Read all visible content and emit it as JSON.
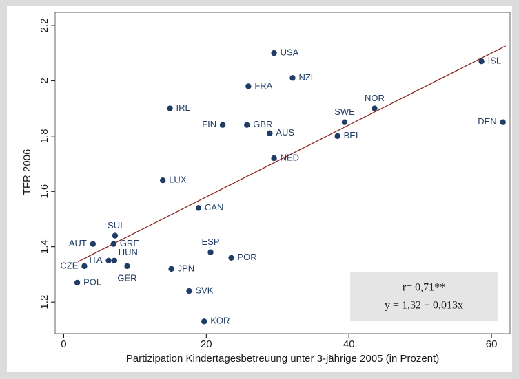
{
  "chart_data": {
    "type": "scatter",
    "x_label": "Partizipation Kindertagesbetreuung unter 3-jährige 2005 (in Prozent)",
    "y_label": "TFR 2006",
    "labels": [
      "USA",
      "NZL",
      "FRA",
      "ISL",
      "NOR",
      "IRL",
      "SWE",
      "DEN",
      "FIN",
      "GBR",
      "AUS",
      "BEL",
      "NED",
      "LUX",
      "CAN",
      "SUI",
      "AUT",
      "GRE",
      "ESP",
      "POR",
      "ITA",
      "HUN",
      "CZE",
      "GER",
      "JPN",
      "POL",
      "SVK",
      "KOR"
    ],
    "x": [
      29.5,
      32.1,
      25.9,
      58.6,
      43.6,
      14.9,
      39.4,
      61.6,
      22.3,
      25.7,
      28.9,
      38.4,
      29.5,
      13.9,
      18.9,
      7.2,
      4.1,
      7.0,
      20.6,
      23.5,
      6.3,
      7.1,
      2.9,
      8.9,
      15.1,
      1.9,
      17.6,
      19.7
    ],
    "y": [
      2.1,
      2.01,
      1.98,
      2.07,
      1.9,
      1.9,
      1.85,
      1.85,
      1.84,
      1.84,
      1.81,
      1.8,
      1.72,
      1.64,
      1.54,
      1.44,
      1.41,
      1.41,
      1.38,
      1.36,
      1.35,
      1.35,
      1.33,
      1.33,
      1.32,
      1.27,
      1.24,
      1.13
    ],
    "color": "#1f3c66",
    "trend_line": {
      "x": [
        2,
        62
      ],
      "y": [
        1.346,
        2.126
      ],
      "color": "#8b2323"
    },
    "annotations": [
      "r= 0,71**",
      "y = 1,32 + 0,013x"
    ],
    "xlim": [
      -1.2,
      62.6
    ],
    "ylim": [
      1.086,
      2.247
    ],
    "xticks": [
      0,
      20,
      40,
      60
    ],
    "yticks": [
      1.2,
      1.4,
      1.6,
      1.8,
      2,
      2.2
    ]
  }
}
